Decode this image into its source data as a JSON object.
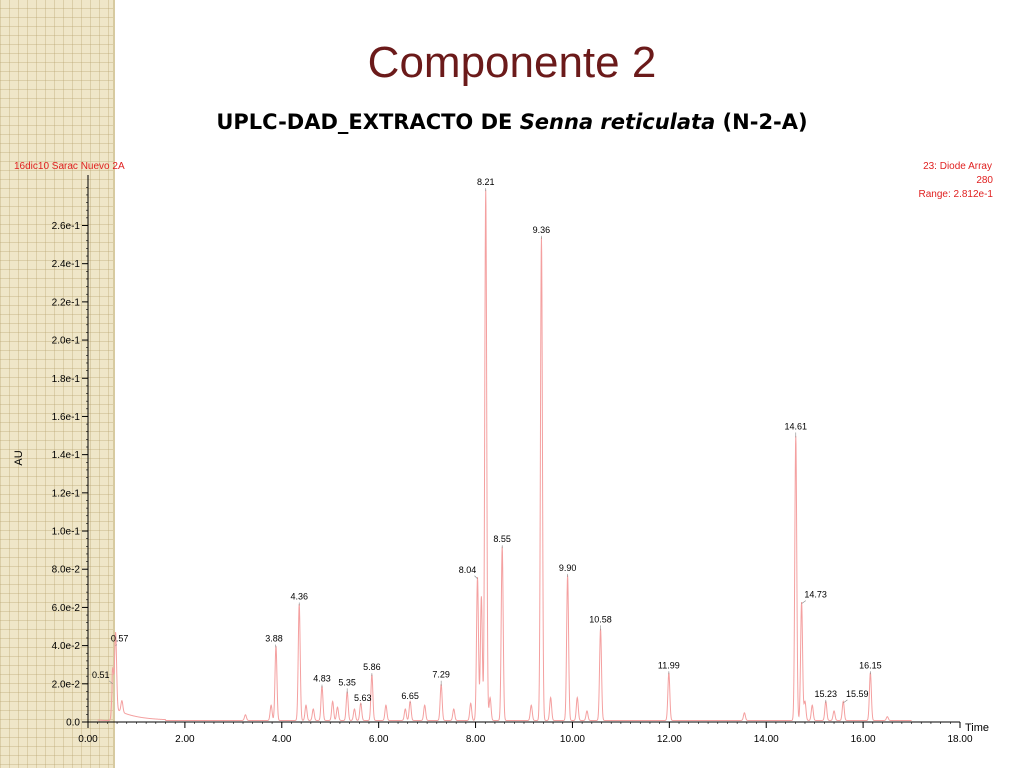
{
  "slide": {
    "title": "Componente 2",
    "subtitle_pre": "UPLC-DAD_EXTRACTO DE ",
    "subtitle_italic": "Senna reticulata",
    "subtitle_post": " (N-2-A)"
  },
  "colors": {
    "trace": "#f4a0a0",
    "header": "#e02020",
    "title": "#6b1a1a"
  },
  "chart_data": {
    "type": "line",
    "sample_label": "16dic10 Sarac Nuevo 2A",
    "detector_info": [
      "23: Diode Array",
      "280",
      "Range: 2.812e-1"
    ],
    "ylabel": "AU",
    "xlabel": "Time",
    "xlim": [
      0,
      18
    ],
    "ylim": [
      0,
      0.2812
    ],
    "x_ticks": [
      {
        "v": 0,
        "label": "0.00"
      },
      {
        "v": 2,
        "label": "2.00"
      },
      {
        "v": 4,
        "label": "4.00"
      },
      {
        "v": 6,
        "label": "6.00"
      },
      {
        "v": 8,
        "label": "8.00"
      },
      {
        "v": 10,
        "label": "10.00"
      },
      {
        "v": 12,
        "label": "12.00"
      },
      {
        "v": 14,
        "label": "14.00"
      },
      {
        "v": 16,
        "label": "16.00"
      },
      {
        "v": 18,
        "label": "18.00"
      }
    ],
    "y_ticks": [
      {
        "v": 0,
        "label": "0.0"
      },
      {
        "v": 0.02,
        "label": "2.0e-2"
      },
      {
        "v": 0.04,
        "label": "4.0e-2"
      },
      {
        "v": 0.06,
        "label": "6.0e-2"
      },
      {
        "v": 0.08,
        "label": "8.0e-2"
      },
      {
        "v": 0.1,
        "label": "1.0e-1"
      },
      {
        "v": 0.12,
        "label": "1.2e-1"
      },
      {
        "v": 0.14,
        "label": "1.4e-1"
      },
      {
        "v": 0.16,
        "label": "1.6e-1"
      },
      {
        "v": 0.18,
        "label": "1.8e-1"
      },
      {
        "v": 0.2,
        "label": "2.0e-1"
      },
      {
        "v": 0.22,
        "label": "2.2e-1"
      },
      {
        "v": 0.24,
        "label": "2.4e-1"
      },
      {
        "v": 0.26,
        "label": "2.6e-1"
      }
    ],
    "peaks": [
      {
        "rt": 0.51,
        "label": "0.51",
        "height": 0.02
      },
      {
        "rt": 0.57,
        "label": "0.57",
        "height": 0.04
      },
      {
        "rt": 3.88,
        "label": "3.88",
        "height": 0.039
      },
      {
        "rt": 4.36,
        "label": "4.36",
        "height": 0.061
      },
      {
        "rt": 4.83,
        "label": "4.83",
        "height": 0.018
      },
      {
        "rt": 5.35,
        "label": "5.35",
        "height": 0.015
      },
      {
        "rt": 5.63,
        "label": "5.63",
        "height": 0.009
      },
      {
        "rt": 5.86,
        "label": "5.86",
        "height": 0.024
      },
      {
        "rt": 6.65,
        "label": "6.65",
        "height": 0.01
      },
      {
        "rt": 7.29,
        "label": "7.29",
        "height": 0.019
      },
      {
        "rt": 8.04,
        "label": "8.04",
        "height": 0.075
      },
      {
        "rt": 8.21,
        "label": "8.21",
        "height": 0.278
      },
      {
        "rt": 8.55,
        "label": "8.55",
        "height": 0.091
      },
      {
        "rt": 9.36,
        "label": "9.36",
        "height": 0.253
      },
      {
        "rt": 9.9,
        "label": "9.90",
        "height": 0.076
      },
      {
        "rt": 10.58,
        "label": "10.58",
        "height": 0.048
      },
      {
        "rt": 11.99,
        "label": "11.99",
        "height": 0.025
      },
      {
        "rt": 14.61,
        "label": "14.61",
        "height": 0.149
      },
      {
        "rt": 14.73,
        "label": "14.73",
        "height": 0.062
      },
      {
        "rt": 15.23,
        "label": "15.23",
        "height": 0.01
      },
      {
        "rt": 15.59,
        "label": "15.59",
        "height": 0.01
      },
      {
        "rt": 16.15,
        "label": "16.15",
        "height": 0.025
      }
    ],
    "minor_peaks": [
      {
        "rt": 0.7,
        "height": 0.006
      },
      {
        "rt": 3.25,
        "height": 0.003
      },
      {
        "rt": 3.78,
        "height": 0.008
      },
      {
        "rt": 4.5,
        "height": 0.008
      },
      {
        "rt": 4.65,
        "height": 0.006
      },
      {
        "rt": 5.05,
        "height": 0.01
      },
      {
        "rt": 5.15,
        "height": 0.007
      },
      {
        "rt": 5.5,
        "height": 0.006
      },
      {
        "rt": 6.15,
        "height": 0.008
      },
      {
        "rt": 6.55,
        "height": 0.006
      },
      {
        "rt": 6.95,
        "height": 0.008
      },
      {
        "rt": 7.55,
        "height": 0.006
      },
      {
        "rt": 7.9,
        "height": 0.009
      },
      {
        "rt": 8.12,
        "height": 0.065
      },
      {
        "rt": 8.3,
        "height": 0.012
      },
      {
        "rt": 9.15,
        "height": 0.008
      },
      {
        "rt": 9.55,
        "height": 0.012
      },
      {
        "rt": 10.1,
        "height": 0.012
      },
      {
        "rt": 10.3,
        "height": 0.005
      },
      {
        "rt": 13.55,
        "height": 0.004
      },
      {
        "rt": 14.8,
        "height": 0.01
      },
      {
        "rt": 14.95,
        "height": 0.008
      },
      {
        "rt": 15.4,
        "height": 0.005
      },
      {
        "rt": 16.5,
        "height": 0.002
      }
    ]
  }
}
